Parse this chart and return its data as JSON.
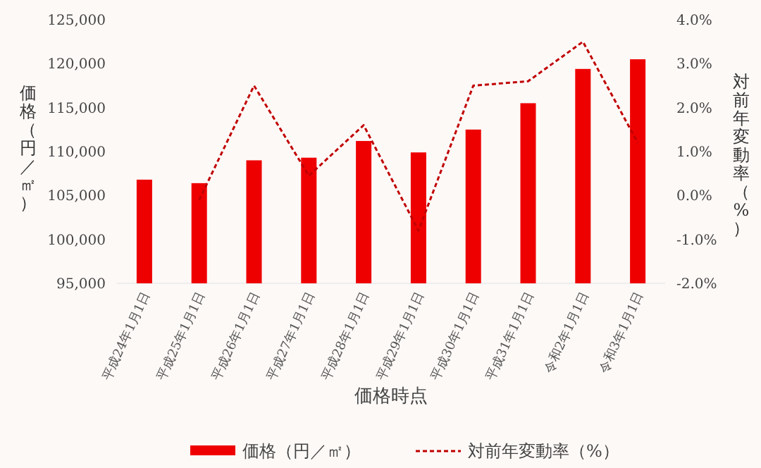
{
  "chart_data": {
    "type": "bar",
    "xlabel": "価格時点",
    "ylabel": "価格（円／㎡）",
    "y2label": "対前年変動率（%）",
    "categories": [
      "平成24年1月1日",
      "平成25年1月1日",
      "平成26年1月1日",
      "平成27年1月1日",
      "平成28年1月1日",
      "平成29年1月1日",
      "平成30年1月1日",
      "平成31年1月1日",
      "令和2年1月1日",
      "令和3年1月1日"
    ],
    "series": [
      {
        "name": "価格（円／㎡）",
        "color": "#ee0000",
        "values": [
          106800,
          106400,
          109000,
          109300,
          111200,
          109900,
          112500,
          115500,
          119400,
          120500
        ]
      },
      {
        "name": "対前年変動率（%）",
        "type": "line",
        "axis": "y2",
        "color": "#c00000",
        "line_style": "dashed",
        "marker": "none",
        "values": [
          null,
          -0.1,
          2.5,
          0.45,
          1.6,
          -0.8,
          2.5,
          2.6,
          3.5,
          1.2
        ]
      }
    ],
    "ylim": [
      95000,
      125000
    ],
    "yticks": [
      {
        "value": 95000,
        "label": "95,000"
      },
      {
        "value": 100000,
        "label": "100,000"
      },
      {
        "value": 105000,
        "label": "105,000"
      },
      {
        "value": 110000,
        "label": "110,000"
      },
      {
        "value": 115000,
        "label": "115,000"
      },
      {
        "value": 120000,
        "label": "120,000"
      },
      {
        "value": 125000,
        "label": "125,000"
      }
    ],
    "y2lim": [
      -2,
      4
    ],
    "y2ticks": [
      {
        "value": -2,
        "label": "-2.0%"
      },
      {
        "value": -1,
        "label": "-1.0%"
      },
      {
        "value": 0,
        "label": "0.0%"
      },
      {
        "value": 1,
        "label": "1.0%"
      },
      {
        "value": 2,
        "label": "2.0%"
      },
      {
        "value": 3,
        "label": "3.0%"
      },
      {
        "value": 4,
        "label": "4.0%"
      }
    ],
    "grid": false,
    "legend": "bottom"
  }
}
